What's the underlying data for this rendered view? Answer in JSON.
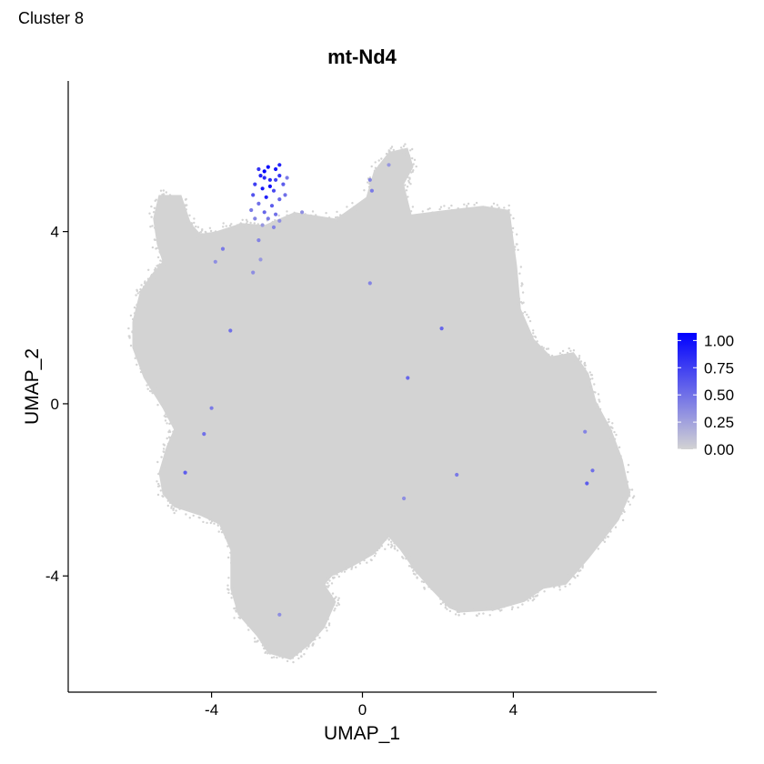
{
  "page_label": "Cluster 8",
  "chart_data": {
    "type": "scatter",
    "title": "mt-Nd4",
    "xlabel": "UMAP_1",
    "ylabel": "UMAP_2",
    "xlim": [
      -7.8,
      7.8
    ],
    "ylim": [
      -6.7,
      7.5
    ],
    "x_ticks": [
      -4,
      0,
      4
    ],
    "x_tick_labels": [
      "-4",
      "0",
      "4"
    ],
    "y_ticks": [
      -4,
      0,
      4
    ],
    "y_tick_labels": [
      "-4",
      "0",
      "4"
    ],
    "grid": false,
    "legend_position": "right",
    "color_scale": {
      "low_color": "#d3d3d3",
      "high_color": "#0000ff",
      "min": 0,
      "max": 1.07,
      "ticks": [
        0,
        0.25,
        0.5,
        0.75,
        1.0
      ],
      "tick_labels": [
        "0.00",
        "0.25",
        "0.50",
        "0.75",
        "1.00"
      ]
    },
    "background_point_color": "#d3d3d3",
    "expressing_points": [
      {
        "x": -2.6,
        "y": 5.4,
        "value": 1.05
      },
      {
        "x": -2.5,
        "y": 5.5,
        "value": 1.0
      },
      {
        "x": -2.3,
        "y": 5.45,
        "value": 0.95
      },
      {
        "x": -2.7,
        "y": 5.3,
        "value": 0.9
      },
      {
        "x": -2.45,
        "y": 5.2,
        "value": 0.85
      },
      {
        "x": -2.2,
        "y": 5.3,
        "value": 0.8
      },
      {
        "x": -2.85,
        "y": 5.1,
        "value": 0.75
      },
      {
        "x": -2.65,
        "y": 5.0,
        "value": 0.95
      },
      {
        "x": -2.1,
        "y": 5.1,
        "value": 0.6
      },
      {
        "x": -2.35,
        "y": 4.95,
        "value": 0.7
      },
      {
        "x": -2.9,
        "y": 4.85,
        "value": 0.65
      },
      {
        "x": -2.55,
        "y": 4.8,
        "value": 0.9
      },
      {
        "x": -2.2,
        "y": 4.75,
        "value": 0.55
      },
      {
        "x": -2.75,
        "y": 4.65,
        "value": 0.5
      },
      {
        "x": -2.4,
        "y": 4.6,
        "value": 0.6
      },
      {
        "x": -2.95,
        "y": 4.5,
        "value": 0.45
      },
      {
        "x": -2.6,
        "y": 4.45,
        "value": 0.55
      },
      {
        "x": -2.3,
        "y": 4.4,
        "value": 0.5
      },
      {
        "x": -2.05,
        "y": 4.85,
        "value": 0.5
      },
      {
        "x": -2.0,
        "y": 5.25,
        "value": 0.45
      },
      {
        "x": -2.75,
        "y": 5.45,
        "value": 0.8
      },
      {
        "x": -2.2,
        "y": 5.55,
        "value": 0.9
      },
      {
        "x": -2.5,
        "y": 4.3,
        "value": 0.45
      },
      {
        "x": -2.85,
        "y": 4.3,
        "value": 0.4
      },
      {
        "x": -2.2,
        "y": 4.25,
        "value": 0.35
      },
      {
        "x": -2.35,
        "y": 4.1,
        "value": 0.4
      },
      {
        "x": -2.65,
        "y": 4.15,
        "value": 0.3
      },
      {
        "x": -2.45,
        "y": 5.05,
        "value": 1.0
      },
      {
        "x": -2.3,
        "y": 5.2,
        "value": 0.75
      },
      {
        "x": -2.6,
        "y": 5.25,
        "value": 0.85
      },
      {
        "x": -1.6,
        "y": 4.45,
        "value": 0.35
      },
      {
        "x": -2.75,
        "y": 3.8,
        "value": 0.4
      },
      {
        "x": -3.7,
        "y": 3.6,
        "value": 0.45
      },
      {
        "x": -3.9,
        "y": 3.3,
        "value": 0.35
      },
      {
        "x": -2.7,
        "y": 3.35,
        "value": 0.3
      },
      {
        "x": -2.9,
        "y": 3.05,
        "value": 0.35
      },
      {
        "x": -3.5,
        "y": 1.7,
        "value": 0.5
      },
      {
        "x": -4.0,
        "y": -0.1,
        "value": 0.45
      },
      {
        "x": -4.2,
        "y": -0.7,
        "value": 0.5
      },
      {
        "x": -4.7,
        "y": -1.6,
        "value": 0.6
      },
      {
        "x": 0.2,
        "y": 5.2,
        "value": 0.4
      },
      {
        "x": 0.25,
        "y": 4.95,
        "value": 0.45
      },
      {
        "x": 0.7,
        "y": 5.55,
        "value": 0.3
      },
      {
        "x": 0.2,
        "y": 2.8,
        "value": 0.4
      },
      {
        "x": 2.1,
        "y": 1.75,
        "value": 0.55
      },
      {
        "x": 1.2,
        "y": 0.6,
        "value": 0.55
      },
      {
        "x": 2.5,
        "y": -1.65,
        "value": 0.45
      },
      {
        "x": 1.1,
        "y": -2.2,
        "value": 0.35
      },
      {
        "x": 5.9,
        "y": -0.65,
        "value": 0.4
      },
      {
        "x": 5.95,
        "y": -1.85,
        "value": 0.6
      },
      {
        "x": 6.1,
        "y": -1.55,
        "value": 0.5
      },
      {
        "x": -2.2,
        "y": -4.9,
        "value": 0.35
      }
    ]
  }
}
